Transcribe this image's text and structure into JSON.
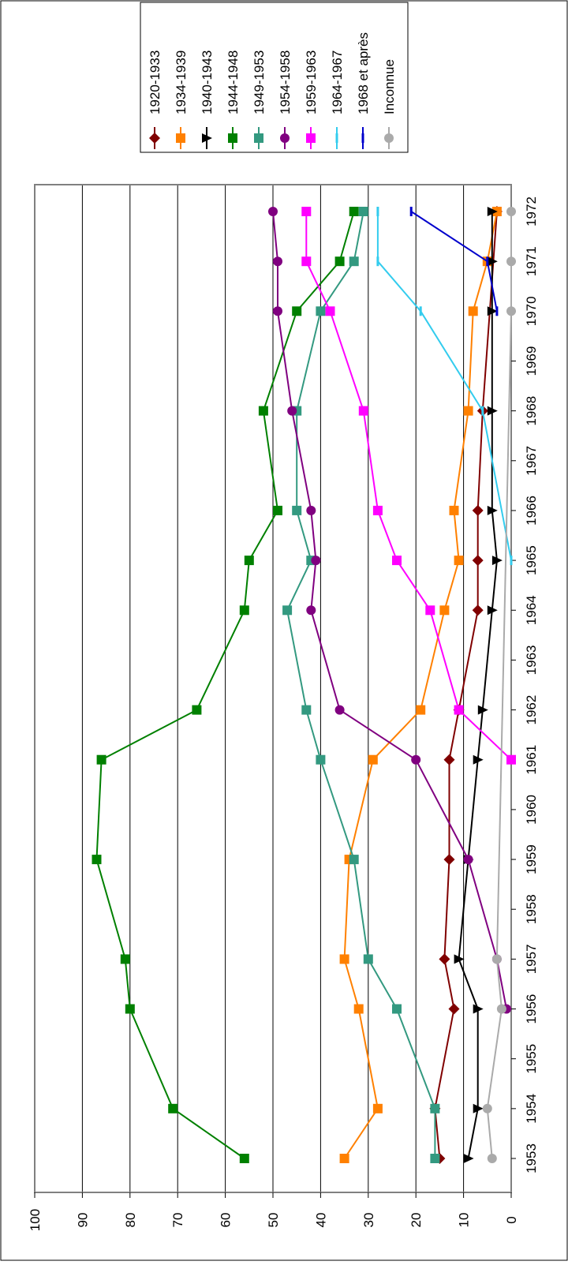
{
  "chart_data": {
    "type": "line",
    "orientation": "rotated 90° counter-clockwise (x axis along right side, y axis along bottom)",
    "categories": [
      "1953",
      "1954",
      "1955",
      "1956",
      "1957",
      "1958",
      "1959",
      "1960",
      "1961",
      "1962",
      "1963",
      "1964",
      "1965",
      "1966",
      "1967",
      "1968",
      "1969",
      "1970",
      "1971",
      "1972"
    ],
    "ylim": [
      0,
      100
    ],
    "yticks": [
      "0",
      "10",
      "20",
      "30",
      "40",
      "50",
      "60",
      "70",
      "80",
      "90",
      "100"
    ],
    "grid": "horizontal lines at every 10",
    "legend_position": "top-right (rotated)",
    "series": [
      {
        "name": "1920-1933",
        "color": "#800000",
        "marker": "diamond",
        "points": [
          [
            1953,
            15
          ],
          [
            1954,
            16
          ],
          [
            1956,
            12
          ],
          [
            1957,
            14
          ],
          [
            1959,
            13
          ],
          [
            1961,
            13
          ],
          [
            1962,
            11
          ],
          [
            1964,
            7
          ],
          [
            1965,
            7
          ],
          [
            1966,
            7
          ],
          [
            1968,
            6
          ],
          [
            1972,
            3
          ]
        ]
      },
      {
        "name": "1934-1939",
        "color": "#ff8000",
        "marker": "square",
        "points": [
          [
            1953,
            35
          ],
          [
            1954,
            28
          ],
          [
            1956,
            32
          ],
          [
            1957,
            35
          ],
          [
            1959,
            34
          ],
          [
            1961,
            29
          ],
          [
            1962,
            19
          ],
          [
            1964,
            14
          ],
          [
            1965,
            11
          ],
          [
            1966,
            12
          ],
          [
            1968,
            9
          ],
          [
            1970,
            8
          ],
          [
            1971,
            5
          ],
          [
            1972,
            3
          ]
        ]
      },
      {
        "name": "1940-1943",
        "color": "#000000",
        "marker": "triangle",
        "points": [
          [
            1953,
            9
          ],
          [
            1954,
            7
          ],
          [
            1956,
            7
          ],
          [
            1957,
            11
          ],
          [
            1959,
            9
          ],
          [
            1961,
            7
          ],
          [
            1962,
            6
          ],
          [
            1964,
            4
          ],
          [
            1965,
            3
          ],
          [
            1966,
            4
          ],
          [
            1968,
            4
          ],
          [
            1970,
            4
          ],
          [
            1971,
            4
          ],
          [
            1972,
            4
          ]
        ]
      },
      {
        "name": "1944-1948",
        "color": "#008000",
        "marker": "square",
        "points": [
          [
            1953,
            56
          ],
          [
            1954,
            71
          ],
          [
            1956,
            80
          ],
          [
            1957,
            81
          ],
          [
            1959,
            87
          ],
          [
            1961,
            86
          ],
          [
            1962,
            66
          ],
          [
            1964,
            56
          ],
          [
            1965,
            55
          ],
          [
            1966,
            49
          ],
          [
            1968,
            52
          ],
          [
            1970,
            45
          ],
          [
            1971,
            36
          ],
          [
            1972,
            33
          ]
        ]
      },
      {
        "name": "1949-1953",
        "color": "#339980",
        "marker": "square",
        "points": [
          [
            1953,
            16
          ],
          [
            1954,
            16
          ],
          [
            1956,
            24
          ],
          [
            1957,
            30
          ],
          [
            1959,
            33
          ],
          [
            1961,
            40
          ],
          [
            1962,
            43
          ],
          [
            1964,
            47
          ],
          [
            1965,
            42
          ],
          [
            1966,
            45
          ],
          [
            1968,
            45
          ],
          [
            1970,
            40
          ],
          [
            1971,
            33
          ],
          [
            1972,
            31
          ]
        ]
      },
      {
        "name": "1954-1958",
        "color": "#800080",
        "marker": "circle",
        "points": [
          [
            1956,
            1
          ],
          [
            1957,
            3
          ],
          [
            1959,
            9
          ],
          [
            1961,
            20
          ],
          [
            1962,
            36
          ],
          [
            1964,
            42
          ],
          [
            1965,
            41
          ],
          [
            1966,
            42
          ],
          [
            1968,
            46
          ],
          [
            1970,
            49
          ],
          [
            1971,
            49
          ],
          [
            1972,
            50
          ]
        ]
      },
      {
        "name": "1959-1963",
        "color": "#ff00ff",
        "marker": "square",
        "points": [
          [
            1961,
            0
          ],
          [
            1962,
            11
          ],
          [
            1964,
            17
          ],
          [
            1965,
            24
          ],
          [
            1966,
            28
          ],
          [
            1968,
            31
          ],
          [
            1970,
            38
          ],
          [
            1971,
            43
          ],
          [
            1972,
            43
          ]
        ]
      },
      {
        "name": "1964-1967",
        "color": "#33ccee",
        "marker": "dash",
        "points": [
          [
            1965,
            0
          ],
          [
            1968,
            6
          ],
          [
            1970,
            19
          ],
          [
            1971,
            28
          ],
          [
            1972,
            28
          ]
        ]
      },
      {
        "name": "1968 et après",
        "color": "#0000cc",
        "marker": "dash",
        "points": [
          [
            1970,
            3
          ],
          [
            1971,
            5
          ],
          [
            1972,
            21
          ]
        ]
      },
      {
        "name": "Inconnue",
        "color": "#aaaaaa",
        "marker": "circle",
        "points": [
          [
            1953,
            4
          ],
          [
            1954,
            5
          ],
          [
            1956,
            2
          ],
          [
            1957,
            3
          ],
          [
            1970,
            0
          ],
          [
            1971,
            0
          ],
          [
            1972,
            0
          ]
        ]
      }
    ]
  }
}
